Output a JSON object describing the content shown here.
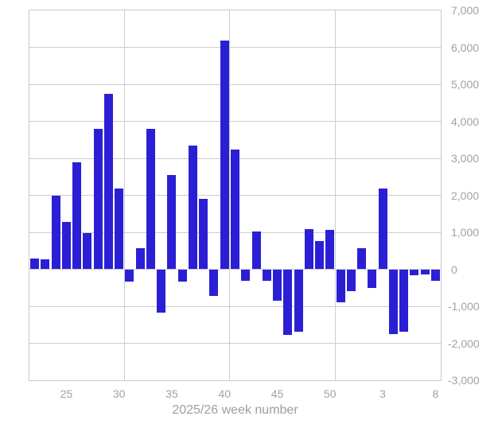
{
  "chart_data": {
    "type": "bar",
    "title": "",
    "xlabel": "2025/26 week number",
    "ylabel": "",
    "weeks": [
      "22",
      "23",
      "24",
      "25",
      "26",
      "27",
      "28",
      "29",
      "30",
      "31",
      "32",
      "33",
      "34",
      "35",
      "36",
      "37",
      "38",
      "39",
      "40",
      "41",
      "42",
      "43",
      "44",
      "45",
      "46",
      "47",
      "48",
      "49",
      "50",
      "51",
      "52",
      "1",
      "2",
      "3",
      "4",
      "5",
      "6",
      "7",
      "8"
    ],
    "values": [
      300,
      270,
      1990,
      1290,
      2890,
      980,
      3790,
      4740,
      2180,
      -340,
      570,
      3790,
      -1180,
      2550,
      -340,
      3340,
      1910,
      -720,
      6190,
      3240,
      -310,
      1020,
      -310,
      -860,
      -1770,
      -1680,
      1090,
      770,
      1070,
      -900,
      -600,
      570,
      -500,
      2180,
      -1750,
      -1680,
      -160,
      -145,
      -310
    ],
    "x_ticks": [
      {
        "slot": 4,
        "label": "25"
      },
      {
        "slot": 9,
        "label": "30"
      },
      {
        "slot": 14,
        "label": "35"
      },
      {
        "slot": 19,
        "label": "40"
      },
      {
        "slot": 24,
        "label": "45"
      },
      {
        "slot": 29,
        "label": "50"
      },
      {
        "slot": 34,
        "label": "3"
      },
      {
        "slot": 39,
        "label": "8"
      }
    ],
    "y_ticks": [
      {
        "value": 7000,
        "label": "7,000"
      },
      {
        "value": 6000,
        "label": "6,000"
      },
      {
        "value": 5000,
        "label": "5,000"
      },
      {
        "value": 4000,
        "label": "4,000"
      },
      {
        "value": 3000,
        "label": "3,000"
      },
      {
        "value": 2000,
        "label": "2,000"
      },
      {
        "value": 1000,
        "label": "1,000"
      },
      {
        "value": 0,
        "label": "0"
      },
      {
        "value": -1000,
        "label": "-1,000"
      },
      {
        "value": -2000,
        "label": "-2,000"
      },
      {
        "value": -3000,
        "label": "-3,000"
      }
    ],
    "ylim": [
      -3000,
      7000
    ],
    "grid": "on",
    "vertical_gridlines_after_slots": [
      9,
      19,
      29
    ],
    "legend": "none",
    "bar_color": "#2b1fd6",
    "grid_color": "#cccccc",
    "border_color": "#c9c9c9",
    "tick_label_color": "#a2a2a2",
    "axis_title_color": "#9e9e9e"
  }
}
